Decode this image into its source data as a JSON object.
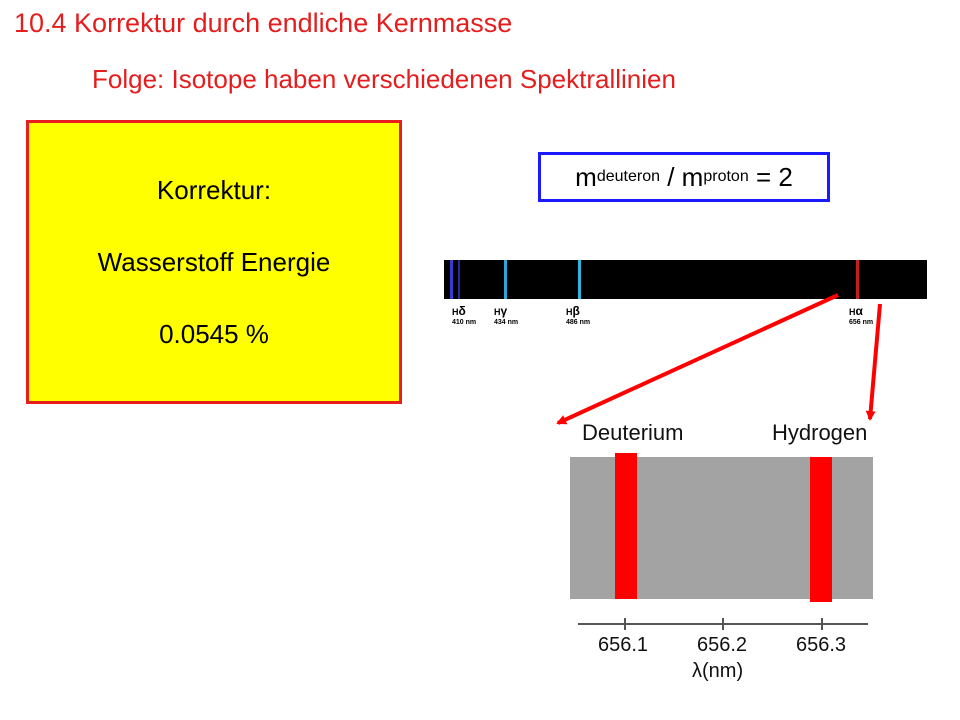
{
  "title": "10.4 Korrektur durch endliche Kernmasse",
  "subtitle": "Folge: Isotope haben verschiedenen Spektrallinien",
  "correction_box": {
    "line1": "Korrektur:",
    "line2": "Wasserstoff Energie",
    "line3": "0.0545 %"
  },
  "mass_ratio": {
    "m_lead": "m",
    "sub1": "deuteron",
    "mid": " / m",
    "sub2": "proton",
    "tail": " = 2"
  },
  "spectrum": {
    "lines": [
      {
        "symbol": "H",
        "greek": "δ",
        "wavelength": "410 nm",
        "color": "#3a3acf"
      },
      {
        "symbol": "H",
        "greek": "γ",
        "wavelength": "434 nm",
        "color": "#2aa8d8"
      },
      {
        "symbol": "H",
        "greek": "β",
        "wavelength": "486 nm",
        "color": "#2fb6e0"
      },
      {
        "symbol": "H",
        "greek": "α",
        "wavelength": "656 nm",
        "color": "#c81e1e"
      }
    ]
  },
  "zoom": {
    "label_deuterium": "Deuterium",
    "label_hydrogen": "Hydrogen",
    "axis_ticks": [
      "656.1",
      "656.2",
      "656.3"
    ],
    "axis_label": "λ(nm)",
    "line_color": "#ff0000",
    "panel_color": "#a3a3a3"
  }
}
